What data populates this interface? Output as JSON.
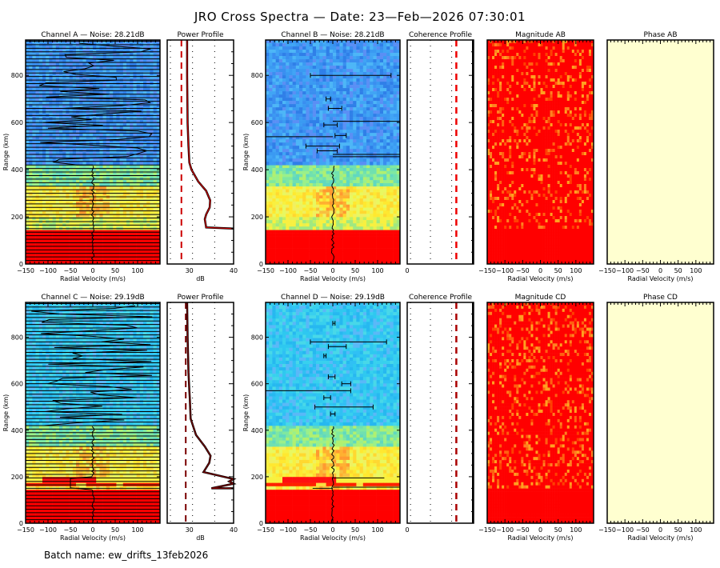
{
  "title": "JRO Cross Spectra — Date: 23—Feb—2026 07:30:01",
  "batch": "Batch name: ew_drifts_13feb2026",
  "colors": {
    "noise_low": "#3aa0f0",
    "mid": "#f5f542",
    "high": "#ff0000",
    "phase_bg": "#ffffd0",
    "profile_line": "#cc0000",
    "profile_dark": "#7a0000"
  },
  "axes": {
    "velocity_label": "Radial Velocity (m/s)",
    "range_label": "Range (km)",
    "db_label": "dB",
    "velocity_ticks": [
      "−150",
      "−100",
      "−50",
      "0",
      "50",
      "100"
    ],
    "range_ticks": [
      "0",
      "200",
      "400",
      "600",
      "800"
    ],
    "db_ticks": [
      "30",
      "40"
    ],
    "coh_ticks": [
      "0"
    ]
  },
  "chart_data": [
    {
      "type": "heatmap",
      "title": "Channel A — Noise: 28.21dB",
      "xlabel": "Radial Velocity (m/s)",
      "ylabel": "Range (km)",
      "xlim": [
        -150,
        150
      ],
      "ylim": [
        0,
        950
      ],
      "noise_db": 28.21,
      "bands": [
        [
          0,
          145,
          "high"
        ],
        [
          145,
          200,
          "mid-green"
        ],
        [
          200,
          330,
          "mid"
        ],
        [
          330,
          420,
          "green"
        ],
        [
          420,
          950,
          "low"
        ]
      ]
    },
    {
      "type": "line",
      "title": "Power Profile",
      "xlabel": "dB",
      "ylabel": "",
      "xlim": [
        25,
        40
      ],
      "ylim": [
        0,
        950
      ],
      "noise_db": 28.21,
      "x": [
        29.5,
        29.5,
        29.6,
        29.8,
        30.0,
        30.5,
        32.0,
        33.8,
        34.7,
        34.6,
        33.8,
        33.5,
        33.8,
        40.0
      ],
      "y": [
        950,
        800,
        600,
        500,
        430,
        400,
        350,
        310,
        270,
        240,
        210,
        190,
        155,
        150
      ]
    },
    {
      "type": "heatmap",
      "title": "Channel B — Noise: 28.21dB",
      "xlabel": "Radial Velocity (m/s)",
      "ylabel": "Range (km)",
      "xlim": [
        -150,
        150
      ],
      "ylim": [
        0,
        950
      ],
      "noise_db": 28.21,
      "bands": [
        [
          0,
          145,
          "high"
        ],
        [
          145,
          200,
          "mid-green"
        ],
        [
          200,
          330,
          "mid"
        ],
        [
          330,
          420,
          "green"
        ],
        [
          420,
          950,
          "low"
        ]
      ]
    },
    {
      "type": "line",
      "title": "Coherence Profile",
      "xlabel": "",
      "ylabel": "",
      "xlim": [
        0,
        1
      ],
      "ylim": [
        0,
        950
      ],
      "threshold": 0.8
    },
    {
      "type": "heatmap",
      "title": "Magnitude AB",
      "xlabel": "Radial Velocity (m/s)",
      "ylabel": "",
      "xlim": [
        -150,
        150
      ],
      "ylim": [
        0,
        950
      ]
    },
    {
      "type": "heatmap",
      "title": "Phase AB",
      "xlabel": "Radial Velocity (m/s)",
      "ylabel": "",
      "xlim": [
        -150,
        150
      ],
      "ylim": [
        0,
        950
      ]
    },
    {
      "type": "heatmap",
      "title": "Channel C — Noise: 29.19dB",
      "xlabel": "Radial Velocity (m/s)",
      "ylabel": "Range (km)",
      "xlim": [
        -150,
        150
      ],
      "ylim": [
        0,
        950
      ],
      "noise_db": 29.19,
      "bands": [
        [
          0,
          145,
          "high"
        ],
        [
          145,
          160,
          "mid"
        ],
        [
          160,
          200,
          "high-stripe"
        ],
        [
          200,
          330,
          "mid"
        ],
        [
          330,
          420,
          "green"
        ],
        [
          420,
          950,
          "cyan"
        ]
      ]
    },
    {
      "type": "line",
      "title": "Power Profile",
      "xlabel": "dB",
      "ylabel": "",
      "xlim": [
        25,
        40
      ],
      "ylim": [
        0,
        950
      ],
      "noise_db": 29.19,
      "x": [
        29.5,
        29.6,
        29.8,
        30.0,
        30.1,
        30.3,
        31.5,
        33.5,
        34.8,
        34.5,
        33.2,
        40.0,
        39.0,
        40.0,
        35.0,
        40.0
      ],
      "y": [
        950,
        800,
        650,
        570,
        540,
        450,
        380,
        330,
        290,
        260,
        220,
        190,
        180,
        170,
        150,
        150
      ]
    },
    {
      "type": "heatmap",
      "title": "Channel D — Noise: 29.19dB",
      "xlabel": "Radial Velocity (m/s)",
      "ylabel": "Range (km)",
      "xlim": [
        -150,
        150
      ],
      "ylim": [
        0,
        950
      ],
      "noise_db": 29.19,
      "bands": [
        [
          0,
          145,
          "high"
        ],
        [
          145,
          160,
          "mid"
        ],
        [
          160,
          200,
          "high-stripe"
        ],
        [
          200,
          330,
          "mid"
        ],
        [
          330,
          420,
          "green"
        ],
        [
          420,
          950,
          "cyan"
        ]
      ]
    },
    {
      "type": "line",
      "title": "Coherence Profile",
      "xlabel": "",
      "ylabel": "",
      "xlim": [
        0,
        1
      ],
      "ylim": [
        0,
        950
      ],
      "threshold": 0.8
    },
    {
      "type": "heatmap",
      "title": "Magnitude CD",
      "xlabel": "Radial Velocity (m/s)",
      "ylabel": "",
      "xlim": [
        -150,
        150
      ],
      "ylim": [
        0,
        950
      ]
    },
    {
      "type": "heatmap",
      "title": "Phase CD",
      "xlabel": "Radial Velocity (m/s)",
      "ylabel": "",
      "xlim": [
        -150,
        150
      ],
      "ylim": [
        0,
        950
      ]
    }
  ]
}
